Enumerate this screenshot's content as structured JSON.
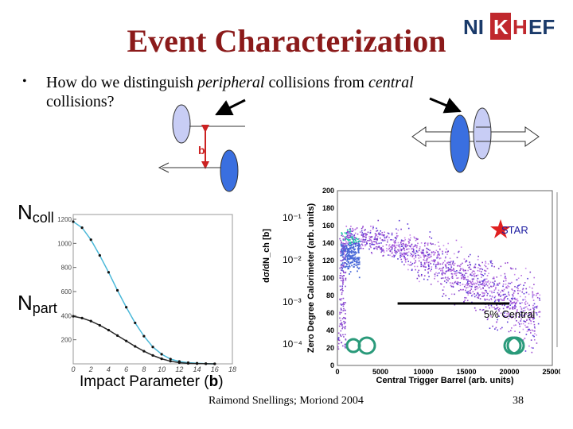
{
  "title": "Event Characterization",
  "logo": {
    "text_left": "NI",
    "text_box": "K",
    "text_mid": "H",
    "text_right": "EF"
  },
  "bullet": {
    "part1": "How do we distinguish ",
    "em1": "peripheral",
    "part2": " collisions from ",
    "em2": "central",
    "part3": " collisions?"
  },
  "impact_parameter_symbol": "b",
  "labels": {
    "ncoll_main": "N",
    "ncoll_sub": "coll",
    "npart_main": "N",
    "npart_sub": "part",
    "impact_main": "Impact Parameter (",
    "impact_bold": "b",
    "impact_end": ")"
  },
  "star_label": "STAR",
  "central_label": "5% Central",
  "footer": {
    "author": "Raimond Snellings; Moriond 2004",
    "page": "38"
  },
  "colors": {
    "title": "#8b1a1a",
    "nucleus_light": "#c8cdf5",
    "nucleus_dark": "#3a6fe0",
    "star": "#e02020",
    "ring": "#2a9a7a"
  },
  "chart_data": [
    {
      "type": "line",
      "title": "",
      "xlabel": "Impact Parameter (b)",
      "ylabel": "",
      "xlim": [
        0,
        18
      ],
      "ylim": [
        0,
        1200
      ],
      "x_ticks": [
        "0",
        "2",
        "4",
        "6",
        "8",
        "10",
        "12",
        "14",
        "16",
        "18"
      ],
      "y_ticks": [
        "200",
        "400",
        "600",
        "800",
        "1000",
        "1200"
      ],
      "series": [
        {
          "name": "Ncoll",
          "x": [
            0,
            1,
            2,
            3,
            4,
            5,
            6,
            7,
            8,
            9,
            10,
            11,
            12,
            13,
            14,
            15,
            16
          ],
          "values": [
            1180,
            1130,
            1030,
            900,
            760,
            610,
            470,
            340,
            230,
            140,
            80,
            40,
            20,
            10,
            5,
            2,
            0
          ]
        },
        {
          "name": "Npart",
          "x": [
            0,
            1,
            2,
            3,
            4,
            5,
            6,
            7,
            8,
            9,
            10,
            11,
            12,
            13,
            14,
            15,
            16
          ],
          "values": [
            395,
            380,
            355,
            320,
            280,
            235,
            190,
            145,
            105,
            70,
            42,
            22,
            10,
            4,
            2,
            1,
            0
          ]
        }
      ],
      "right_axis_label": "dσ/dN_ch [b]",
      "right_axis_ticks": [
        "10⁻¹",
        "10⁻²",
        "10⁻³",
        "10⁻⁴"
      ]
    },
    {
      "type": "scatter",
      "title": "",
      "xlabel": "Central Trigger Barrel (arb. units)",
      "ylabel": "Zero Degree Calorimeter (arb. units)",
      "xlim": [
        0,
        25000
      ],
      "ylim": [
        0,
        200
      ],
      "x_ticks": [
        "0",
        "5000",
        "10000",
        "15000",
        "20000",
        "25000"
      ],
      "y_ticks": [
        "0",
        "20",
        "40",
        "60",
        "80",
        "100",
        "120",
        "140",
        "160",
        "180",
        "200"
      ],
      "trend": {
        "x": [
          0,
          1000,
          3000,
          6000,
          9000,
          12000,
          15000,
          18000,
          21000,
          23000
        ],
        "y": [
          20,
          148,
          148,
          140,
          128,
          115,
          100,
          85,
          68,
          55
        ]
      },
      "central_cut_x": [
        7000,
        20000
      ]
    }
  ]
}
